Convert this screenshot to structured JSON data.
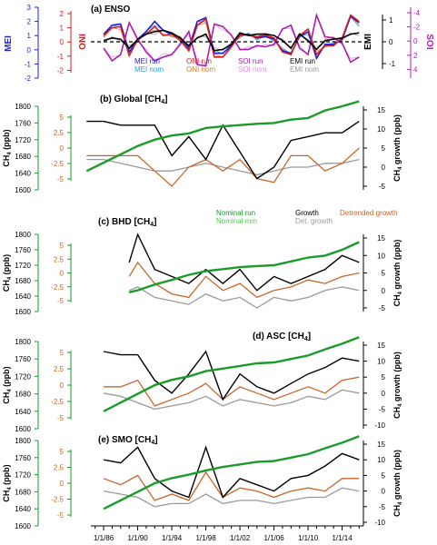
{
  "x_ticks": [
    "1/1/86",
    "1/1/90",
    "1/1/94",
    "1/1/98",
    "1/1/02",
    "1/1/06",
    "1/1/10",
    "1/1/14"
  ],
  "colors": {
    "mei_run": "#1f1fdb",
    "mei_nom": "#1aa0e8",
    "oni_run": "#d61c1c",
    "oni_nom": "#e07a2a",
    "soi_run": "#b01cb0",
    "soi_nom": "#e48ee4",
    "emi_run": "#000000",
    "emi_nom": "#9a9a9a",
    "nom_run": "#1a9b2a",
    "nom_mm": "#48d048",
    "growth": "#000000",
    "det_growth": "#9a9a9a",
    "detrended": "#c8662a"
  },
  "panel_a": {
    "title": "(a)  ENSO",
    "mei_label": "MEI",
    "oni_label": "ONI",
    "emi_label": "EMI",
    "soi_label": "SOI",
    "mei_ticks": [
      "3",
      "2",
      "1",
      "0",
      "-1",
      "-2"
    ],
    "oni_ticks": [
      "2",
      "1",
      "0",
      "-1",
      "-2"
    ],
    "emi_ticks": [
      "1",
      "0",
      "-1"
    ],
    "soi_ticks": [
      "-4",
      "-2",
      "0",
      "2",
      "4"
    ],
    "legend": [
      "MEI run",
      "ONI run",
      "SOI run",
      "EMI run",
      "MEI nom",
      "ONI nom",
      "SOI nom",
      "EMI nom"
    ]
  },
  "panels": [
    {
      "key": "b",
      "title": "(b)  Global [CH4]",
      "title_main": "(b)  Global [CH",
      "title_sub": "4",
      "title_end": "]"
    },
    {
      "key": "c",
      "title_main": "(c)  BHD [CH",
      "title_sub": "4",
      "title_end": "]"
    },
    {
      "key": "d",
      "title_main": "(d)  ASC [CH",
      "title_sub": "4",
      "title_end": "]"
    },
    {
      "key": "e",
      "title_main": "(e)  SMO [CH",
      "title_sub": "4",
      "title_end": "]"
    }
  ],
  "ch4_axis": {
    "label_main": "CH",
    "label_sub": "4",
    "label_end": " (ppb)",
    "ticks": [
      "1800",
      "1760",
      "1720",
      "1680",
      "1640",
      "1600"
    ]
  },
  "green_axis_ticks": [
    "5",
    "2.5",
    "0",
    "-2.5",
    "-5"
  ],
  "growth_axis": {
    "label_main": "CH",
    "label_sub": "4",
    "label_end": " growth (ppb)",
    "ticks_b": [
      "15",
      "10",
      "5",
      "0",
      "-5"
    ],
    "ticks_c": [
      "15",
      "10",
      "5",
      "0",
      "-5",
      "-10"
    ]
  },
  "legend_c": [
    "Nominal run",
    "Growth",
    "Detrended growth",
    "Nominal mm",
    "Det. growth"
  ],
  "chart_data": [
    {
      "type": "line",
      "title": "(a)  ENSO",
      "x": [
        1986,
        1987,
        1988,
        1989,
        1990,
        1991,
        1992,
        1993,
        1994,
        1995,
        1996,
        1997,
        1998,
        1999,
        2000,
        2001,
        2002,
        2003,
        2004,
        2005,
        2006,
        2007,
        2008,
        2009,
        2010,
        2011,
        2012,
        2013,
        2014,
        2015,
        2016
      ],
      "series": [
        {
          "name": "MEI run",
          "values": [
            0.6,
            1.3,
            1.4,
            -0.8,
            0.2,
            0.8,
            1.6,
            0.9,
            0.6,
            0.3,
            -0.5,
            1.6,
            1.9,
            -0.9,
            -0.9,
            -0.3,
            0.5,
            0.6,
            0.3,
            0.4,
            0.2,
            -0.7,
            -0.9,
            0.4,
            0.8,
            -1.3,
            -0.2,
            -0.2,
            0.2,
            2.0,
            1.5
          ]
        },
        {
          "name": "ONI run",
          "values": [
            0.5,
            1.1,
            1.2,
            -1.1,
            0.2,
            0.6,
            1.2,
            0.5,
            0.6,
            0.1,
            -0.7,
            1.3,
            1.8,
            -1.2,
            -1.2,
            -0.4,
            0.6,
            0.5,
            0.4,
            0.5,
            0.3,
            -0.8,
            -1.0,
            0.5,
            1.0,
            -1.0,
            -0.3,
            -0.3,
            0.3,
            2.1,
            1.6
          ]
        },
        {
          "name": "SOI run",
          "values": [
            -0.5,
            -1.5,
            -1.0,
            1.5,
            0.2,
            -0.8,
            -1.5,
            -1.2,
            -1.0,
            -0.2,
            0.8,
            -1.8,
            -1.9,
            1.4,
            1.2,
            0.5,
            -0.6,
            -0.6,
            -0.3,
            -0.4,
            -0.2,
            1.0,
            1.3,
            -0.5,
            -1.0,
            2.1,
            0.4,
            0.3,
            -0.1,
            -1.6,
            -1.2
          ]
        },
        {
          "name": "EMI run",
          "values": [
            0.1,
            0.3,
            0.2,
            -0.5,
            0.2,
            0.6,
            0.8,
            0.9,
            0.7,
            0.3,
            -0.3,
            0.3,
            0.6,
            -0.7,
            -0.6,
            -0.2,
            0.7,
            0.5,
            0.6,
            0.6,
            0.5,
            0.1,
            -0.5,
            0.6,
            0.1,
            -0.6,
            0.1,
            0.2,
            0.3,
            0.6,
            0.7
          ]
        }
      ],
      "ylabel_left": "MEI",
      "ylabel_left2": "ONI",
      "ylabel_right": "EMI",
      "ylabel_right2": "SOI",
      "ylim": [
        -2,
        3
      ]
    },
    {
      "type": "line",
      "title": "(b)  Global [CH4]",
      "x": [
        1984,
        1986,
        1988,
        1990,
        1992,
        1994,
        1996,
        1998,
        2000,
        2002,
        2004,
        2006,
        2008,
        2010,
        2012,
        2014,
        2016
      ],
      "series": [
        {
          "name": "Nominal run",
          "values": [
            1645,
            1665,
            1685,
            1705,
            1720,
            1730,
            1735,
            1748,
            1752,
            1755,
            1758,
            1760,
            1768,
            1772,
            1790,
            1800,
            1812
          ]
        },
        {
          "name": "Growth",
          "values": [
            12,
            12,
            11,
            11,
            11,
            3,
            8,
            2,
            11,
            4,
            -3,
            0,
            7,
            8,
            9,
            9,
            12
          ]
        },
        {
          "name": "Detrended growth",
          "values": [
            3,
            3,
            3,
            3,
            -1,
            -5,
            0,
            2,
            -1,
            2,
            -3,
            -4,
            3,
            3,
            -1,
            1,
            5
          ]
        },
        {
          "name": "Det. growth",
          "values": [
            2,
            2,
            1,
            0,
            -1,
            -1,
            0,
            1,
            0,
            -1,
            -2,
            -1,
            0,
            0,
            1,
            1,
            2
          ]
        }
      ],
      "ylabel_left": "CH4 (ppb)",
      "ylabel_right": "CH4 growth (ppb)",
      "ylim": [
        1600,
        1800
      ]
    },
    {
      "type": "line",
      "title": "(c)  BHD [CH4]",
      "x": [
        1989,
        1990,
        1992,
        1994,
        1996,
        1998,
        2000,
        2002,
        2004,
        2006,
        2008,
        2010,
        2012,
        2014,
        2016
      ],
      "series": [
        {
          "name": "Nominal run",
          "values": [
            1650,
            1655,
            1670,
            1682,
            1695,
            1705,
            1710,
            1715,
            1718,
            1720,
            1730,
            1740,
            1745,
            1760,
            1780
          ]
        },
        {
          "name": "Growth",
          "values": [
            8,
            16,
            6,
            4,
            2,
            6,
            2,
            6,
            0,
            4,
            2,
            4,
            6,
            10,
            8
          ]
        },
        {
          "name": "Detrended growth",
          "values": [
            4,
            8,
            2,
            -1,
            -2,
            4,
            0,
            2,
            -2,
            0,
            1,
            3,
            2,
            4,
            5
          ]
        },
        {
          "name": "Det. growth",
          "values": [
            0,
            1,
            -2,
            -3,
            -4,
            -1,
            -3,
            -2,
            -5,
            -2,
            -3,
            -2,
            0,
            1,
            0
          ]
        }
      ],
      "ylabel_left": "CH4 (ppb)",
      "ylabel_right": "CH4 growth (ppb)",
      "ylim": [
        1600,
        1800
      ]
    },
    {
      "type": "line",
      "title": "(d)  ASC [CH4]",
      "x": [
        1986,
        1988,
        1990,
        1992,
        1994,
        1996,
        1998,
        2000,
        2002,
        2004,
        2006,
        2008,
        2010,
        2012,
        2014,
        2016
      ],
      "series": [
        {
          "name": "Nominal run",
          "values": [
            1640,
            1660,
            1680,
            1700,
            1712,
            1720,
            1732,
            1738,
            1744,
            1750,
            1752,
            1760,
            1768,
            1782,
            1795,
            1810
          ]
        },
        {
          "name": "Growth",
          "values": [
            13,
            12,
            12,
            4,
            0,
            6,
            13,
            -2,
            6,
            2,
            0,
            3,
            6,
            8,
            11,
            10
          ]
        },
        {
          "name": "Detrended growth",
          "values": [
            2,
            2,
            4,
            -4,
            -2,
            0,
            3,
            -2,
            2,
            0,
            -2,
            0,
            2,
            0,
            4,
            5
          ]
        },
        {
          "name": "Det. growth",
          "values": [
            0,
            -1,
            -3,
            -5,
            -4,
            -3,
            -1,
            -4,
            -2,
            -3,
            -4,
            -3,
            -1,
            -2,
            1,
            0
          ]
        }
      ],
      "ylabel_left": "CH4 (ppb)",
      "ylabel_right": "CH4 growth (ppb)",
      "ylim": [
        1600,
        1800
      ]
    },
    {
      "type": "line",
      "title": "(e)  SMO [CH4]",
      "x": [
        1986,
        1988,
        1990,
        1992,
        1994,
        1996,
        1998,
        2000,
        2002,
        2004,
        2006,
        2008,
        2010,
        2012,
        2014,
        2016
      ],
      "series": [
        {
          "name": "Nominal run",
          "values": [
            1640,
            1660,
            1680,
            1700,
            1712,
            1720,
            1730,
            1738,
            1744,
            1750,
            1752,
            1760,
            1768,
            1782,
            1795,
            1810
          ]
        },
        {
          "name": "Growth",
          "values": [
            10,
            9,
            14,
            4,
            0,
            -2,
            14,
            -2,
            4,
            2,
            0,
            4,
            5,
            8,
            12,
            10
          ]
        },
        {
          "name": "Detrended growth",
          "values": [
            4,
            2,
            5,
            -3,
            -1,
            -3,
            6,
            -2,
            1,
            0,
            -2,
            0,
            1,
            0,
            4,
            4
          ]
        },
        {
          "name": "Det. growth",
          "values": [
            0,
            -1,
            -2,
            -5,
            -4,
            -4,
            -1,
            -4,
            -3,
            -3,
            -4,
            -3,
            -2,
            -2,
            1,
            0
          ]
        }
      ],
      "ylabel_left": "CH4 (ppb)",
      "ylabel_right": "CH4 growth (ppb)",
      "ylim": [
        1600,
        1800
      ]
    }
  ]
}
